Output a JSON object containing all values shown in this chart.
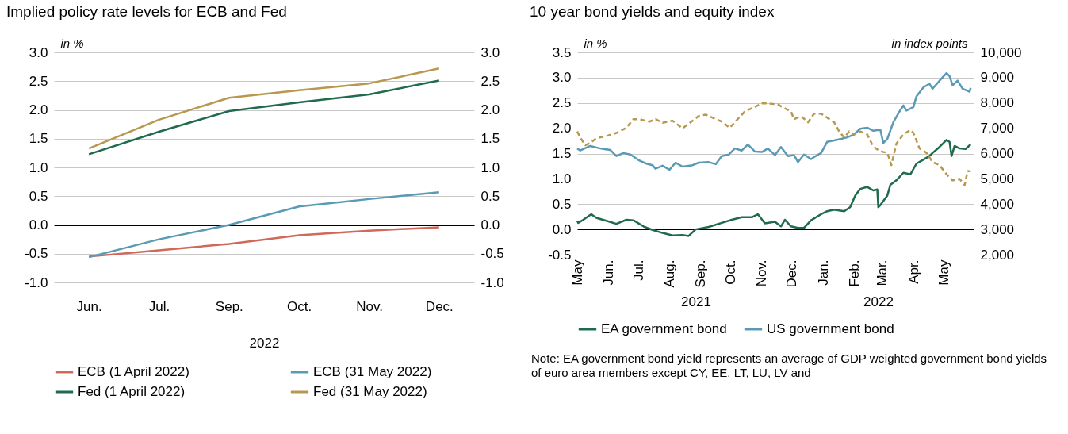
{
  "chart_data": [
    {
      "type": "line",
      "title": "Implied policy rate levels for ECB and Fed",
      "xlabel": "2022",
      "ylabel": "in %",
      "categories": [
        "Jun.",
        "Jul.",
        "Sep.",
        "Oct.",
        "Nov.",
        "Dec."
      ],
      "series": [
        {
          "name": "ECB (1 April 2022)",
          "color": "#d0695a",
          "values": [
            -0.55,
            -0.44,
            -0.33,
            -0.18,
            -0.1,
            -0.04
          ]
        },
        {
          "name": "ECB (31 May 2022)",
          "color": "#5b9ab5",
          "values": [
            -0.56,
            -0.25,
            0.0,
            0.32,
            0.45,
            0.57
          ]
        },
        {
          "name": "Fed (1 April 2022)",
          "color": "#1f6b4c",
          "values": [
            1.23,
            1.62,
            1.98,
            2.13,
            2.27,
            2.51
          ]
        },
        {
          "name": "Fed (31 May 2022)",
          "color": "#b8984f",
          "values": [
            1.33,
            1.83,
            2.21,
            2.34,
            2.46,
            2.72
          ]
        }
      ],
      "ylim": [
        -1,
        3
      ],
      "yticks": [
        {
          "value": -1,
          "label": "-1.0"
        },
        -0.5,
        {
          "value": 0,
          "label": "0.0"
        },
        0.5,
        {
          "value": 1,
          "label": "1.0"
        },
        1.5,
        {
          "value": 2,
          "label": "2.0"
        },
        2.5,
        {
          "value": 3,
          "label": "3.0"
        }
      ],
      "y2lim": [
        -1,
        3
      ],
      "y2ticks": [
        {
          "value": -1,
          "label": "-1.0"
        },
        -0.5,
        {
          "value": 0,
          "label": "0.0"
        },
        0.5,
        {
          "value": 1,
          "label": "1.0"
        },
        1.5,
        {
          "value": 2,
          "label": "2.0"
        },
        2.5,
        {
          "value": 3,
          "label": "3.0"
        }
      ],
      "grid": "y",
      "legend": "bottom",
      "line_style": "solid"
    },
    {
      "type": "line",
      "title": "10 year bond yields and equity index",
      "ylabel": "in %",
      "y2label": "in index points",
      "xlim": [
        "2021-05-01",
        "2022-05-31"
      ],
      "xticks": [
        {
          "value": "2021-05-01",
          "label": "May"
        },
        {
          "value": "2021-06-01",
          "label": "Jun."
        },
        {
          "value": "2021-07-01",
          "label": "Jul."
        },
        {
          "value": "2021-08-01",
          "label": "Aug."
        },
        {
          "value": "2021-09-01",
          "label": "Sep."
        },
        {
          "value": "2021-10-01",
          "label": "Oct."
        },
        {
          "value": "2021-11-01",
          "label": "Nov."
        },
        {
          "value": "2021-12-01",
          "label": "Dec."
        },
        {
          "value": "2022-01-01",
          "label": "Jan."
        },
        {
          "value": "2022-02-01",
          "label": "Feb."
        },
        {
          "value": "2022-03-01",
          "label": "Mar."
        },
        {
          "value": "2022-04-01",
          "label": "Apr."
        },
        {
          "value": "2022-05-01",
          "label": "May"
        }
      ],
      "series": [
        {
          "name": "EA government bond",
          "color": "#1f6b4c",
          "x": [
            "2021-05-01",
            "2021-05-02",
            "2021-05-07",
            "2021-05-15",
            "2021-05-20",
            "2021-05-30",
            "2021-06-09",
            "2021-06-19",
            "2021-06-26",
            "2021-07-06",
            "2021-07-15",
            "2021-07-25",
            "2021-08-04",
            "2021-08-14",
            "2021-08-20",
            "2021-08-27",
            "2021-09-09",
            "2021-09-22",
            "2021-10-02",
            "2021-10-12",
            "2021-10-22",
            "2021-10-28",
            "2021-11-04",
            "2021-11-14",
            "2021-11-20",
            "2021-11-24",
            "2021-11-30",
            "2021-12-07",
            "2021-12-13",
            "2021-12-20",
            "2021-12-30",
            "2022-01-05",
            "2022-01-12",
            "2022-01-22",
            "2022-01-28",
            "2022-02-02",
            "2022-02-07",
            "2022-02-14",
            "2022-02-20",
            "2022-02-24",
            "2022-02-25",
            "2022-02-27",
            "2022-03-06",
            "2022-03-09",
            "2022-03-15",
            "2022-03-22",
            "2022-03-29",
            "2022-04-04",
            "2022-04-11",
            "2022-04-17",
            "2022-04-20",
            "2022-04-27",
            "2022-05-04",
            "2022-05-07",
            "2022-05-09",
            "2022-05-12",
            "2022-05-17",
            "2022-05-23",
            "2022-05-28"
          ],
          "values": [
            0.17,
            0.13,
            0.19,
            0.3,
            0.23,
            0.17,
            0.11,
            0.19,
            0.18,
            0.06,
            -0.01,
            -0.07,
            -0.12,
            -0.11,
            -0.13,
            0.0,
            0.05,
            0.13,
            0.19,
            0.24,
            0.24,
            0.3,
            0.12,
            0.15,
            0.06,
            0.19,
            0.06,
            0.03,
            0.03,
            0.18,
            0.3,
            0.36,
            0.39,
            0.36,
            0.44,
            0.67,
            0.8,
            0.84,
            0.77,
            0.79,
            0.44,
            0.48,
            0.67,
            0.88,
            0.97,
            1.12,
            1.09,
            1.3,
            1.38,
            1.45,
            1.51,
            1.63,
            1.77,
            1.73,
            1.45,
            1.65,
            1.6,
            1.59,
            1.68
          ]
        },
        {
          "name": "US government bond",
          "color": "#5b9ab5",
          "x": [
            "2021-05-01",
            "2021-05-04",
            "2021-05-14",
            "2021-05-24",
            "2021-06-03",
            "2021-06-09",
            "2021-06-16",
            "2021-06-23",
            "2021-07-02",
            "2021-07-09",
            "2021-07-15",
            "2021-07-18",
            "2021-07-25",
            "2021-08-01",
            "2021-08-07",
            "2021-08-14",
            "2021-08-24",
            "2021-08-30",
            "2021-09-09",
            "2021-09-16",
            "2021-09-22",
            "2021-09-29",
            "2021-10-05",
            "2021-10-12",
            "2021-10-18",
            "2021-10-25",
            "2021-11-01",
            "2021-11-07",
            "2021-11-14",
            "2021-11-20",
            "2021-11-27",
            "2021-12-03",
            "2021-12-07",
            "2021-12-13",
            "2021-12-20",
            "2021-12-27",
            "2021-12-30",
            "2022-01-05",
            "2022-01-12",
            "2022-01-19",
            "2022-01-25",
            "2022-02-01",
            "2022-02-07",
            "2022-02-14",
            "2022-02-20",
            "2022-02-27",
            "2022-03-02",
            "2022-03-06",
            "2022-03-12",
            "2022-03-19",
            "2022-03-22",
            "2022-03-25",
            "2022-04-01",
            "2022-04-04",
            "2022-04-11",
            "2022-04-17",
            "2022-04-20",
            "2022-04-27",
            "2022-05-04",
            "2022-05-07",
            "2022-05-10",
            "2022-05-15",
            "2022-05-20",
            "2022-05-27",
            "2022-05-28"
          ],
          "values": [
            1.6,
            1.56,
            1.65,
            1.6,
            1.57,
            1.45,
            1.51,
            1.48,
            1.36,
            1.3,
            1.27,
            1.2,
            1.26,
            1.18,
            1.32,
            1.24,
            1.27,
            1.32,
            1.33,
            1.29,
            1.45,
            1.48,
            1.6,
            1.56,
            1.68,
            1.54,
            1.53,
            1.6,
            1.47,
            1.63,
            1.45,
            1.47,
            1.33,
            1.48,
            1.39,
            1.48,
            1.51,
            1.73,
            1.76,
            1.79,
            1.82,
            1.88,
            1.99,
            2.01,
            1.95,
            1.97,
            1.71,
            1.79,
            2.12,
            2.36,
            2.45,
            2.35,
            2.42,
            2.63,
            2.81,
            2.88,
            2.78,
            2.94,
            3.09,
            3.03,
            2.85,
            2.94,
            2.78,
            2.72,
            2.8
          ]
        },
        {
          "axis": "y2",
          "color": "#b8984f",
          "line_style": "dashed",
          "x": [
            "2021-05-01",
            "2021-05-04",
            "2021-05-09",
            "2021-05-14",
            "2021-05-20",
            "2021-05-30",
            "2021-06-09",
            "2021-06-19",
            "2021-06-26",
            "2021-07-02",
            "2021-07-12",
            "2021-07-18",
            "2021-07-25",
            "2021-08-04",
            "2021-08-14",
            "2021-08-20",
            "2021-08-30",
            "2021-09-06",
            "2021-09-16",
            "2021-09-22",
            "2021-09-30",
            "2021-10-05",
            "2021-10-15",
            "2021-10-25",
            "2021-11-01",
            "2021-11-07",
            "2021-11-17",
            "2021-11-24",
            "2021-11-30",
            "2021-12-03",
            "2021-12-10",
            "2021-12-17",
            "2021-12-23",
            "2021-12-30",
            "2022-01-05",
            "2022-01-12",
            "2022-01-17",
            "2022-01-22",
            "2022-01-27",
            "2022-02-01",
            "2022-02-07",
            "2022-02-14",
            "2022-02-20",
            "2022-02-27",
            "2022-03-06",
            "2022-03-10",
            "2022-03-15",
            "2022-03-22",
            "2022-03-29",
            "2022-04-01",
            "2022-04-07",
            "2022-04-14",
            "2022-04-20",
            "2022-04-27",
            "2022-05-04",
            "2022-05-10",
            "2022-05-17",
            "2022-05-22",
            "2022-05-25",
            "2022-05-28"
          ],
          "values": [
            6874,
            6632,
            6329,
            6414,
            6608,
            6692,
            6814,
            7019,
            7358,
            7358,
            7262,
            7358,
            7213,
            7298,
            6995,
            7177,
            7479,
            7540,
            7358,
            7262,
            7019,
            7237,
            7661,
            7843,
            7988,
            7988,
            7940,
            7782,
            7661,
            7358,
            7479,
            7237,
            7576,
            7576,
            7419,
            7237,
            6874,
            6632,
            6874,
            6753,
            6874,
            6753,
            6269,
            6087,
            6027,
            5542,
            6390,
            6753,
            6935,
            6814,
            6208,
            6027,
            5663,
            5542,
            5179,
            4937,
            4998,
            4755,
            5300,
            5300
          ]
        }
      ],
      "ylim": [
        -0.5,
        3.5
      ],
      "yticks": [
        -0.5,
        {
          "value": 0,
          "label": "0.0"
        },
        0.5,
        {
          "value": 1,
          "label": "1.0"
        },
        1.5,
        {
          "value": 2,
          "label": "2.0"
        },
        2.5,
        {
          "value": 3,
          "label": "3.0"
        },
        3.5
      ],
      "y2lim": [
        2000,
        10000
      ],
      "y2ticks": [
        {
          "value": 2000,
          "label": "2,000"
        },
        {
          "value": 3000,
          "label": "3,000"
        },
        {
          "value": 4000,
          "label": "4,000"
        },
        {
          "value": 5000,
          "label": "5,000"
        },
        {
          "value": 6000,
          "label": "6,000"
        },
        {
          "value": 7000,
          "label": "7,000"
        },
        {
          "value": 8000,
          "label": "8,000"
        },
        {
          "value": 9000,
          "label": "9,000"
        },
        {
          "value": 10000,
          "label": "10,000"
        }
      ],
      "grid": "y",
      "legend": "bottom",
      "annotations": [
        "2021",
        "2022",
        "Note: EA government bond yield represents an average of GDP weighted government bond yields of euro area members except CY, EE, LT, LU, LV and"
      ]
    }
  ]
}
